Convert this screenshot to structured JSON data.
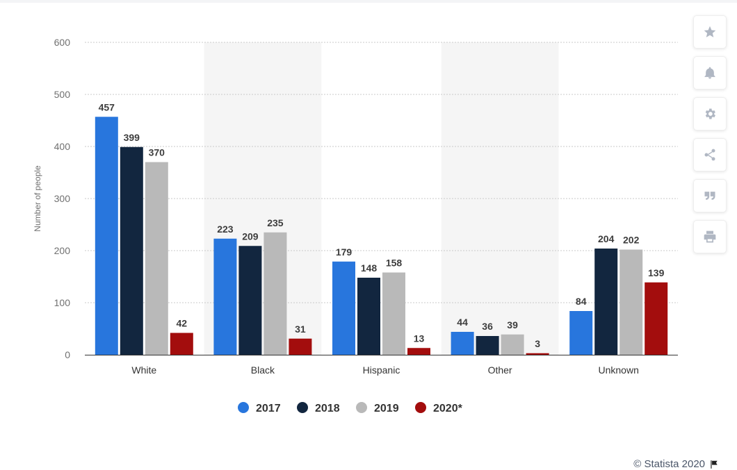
{
  "chart_data": {
    "type": "bar",
    "title": "",
    "xlabel": "",
    "ylabel": "Number of people",
    "ylim": [
      0,
      600
    ],
    "yticks": [
      0,
      100,
      200,
      300,
      400,
      500,
      600
    ],
    "categories": [
      "White",
      "Black",
      "Hispanic",
      "Other",
      "Unknown"
    ],
    "series": [
      {
        "name": "2017",
        "color": "#2876dd",
        "values": [
          457,
          223,
          179,
          44,
          84
        ]
      },
      {
        "name": "2018",
        "color": "#12263f",
        "values": [
          399,
          209,
          148,
          36,
          204
        ]
      },
      {
        "name": "2019",
        "color": "#b9b9b9",
        "values": [
          370,
          235,
          158,
          39,
          202
        ]
      },
      {
        "name": "2020*",
        "color": "#a30d0d",
        "values": [
          42,
          31,
          13,
          3,
          139
        ]
      }
    ],
    "legend": "bottom-center",
    "grid": true
  },
  "toolbar": {
    "buttons": [
      "star-icon",
      "bell-icon",
      "gear-icon",
      "share-icon",
      "quote-icon",
      "print-icon"
    ]
  },
  "credits": {
    "text": "© Statista 2020"
  }
}
